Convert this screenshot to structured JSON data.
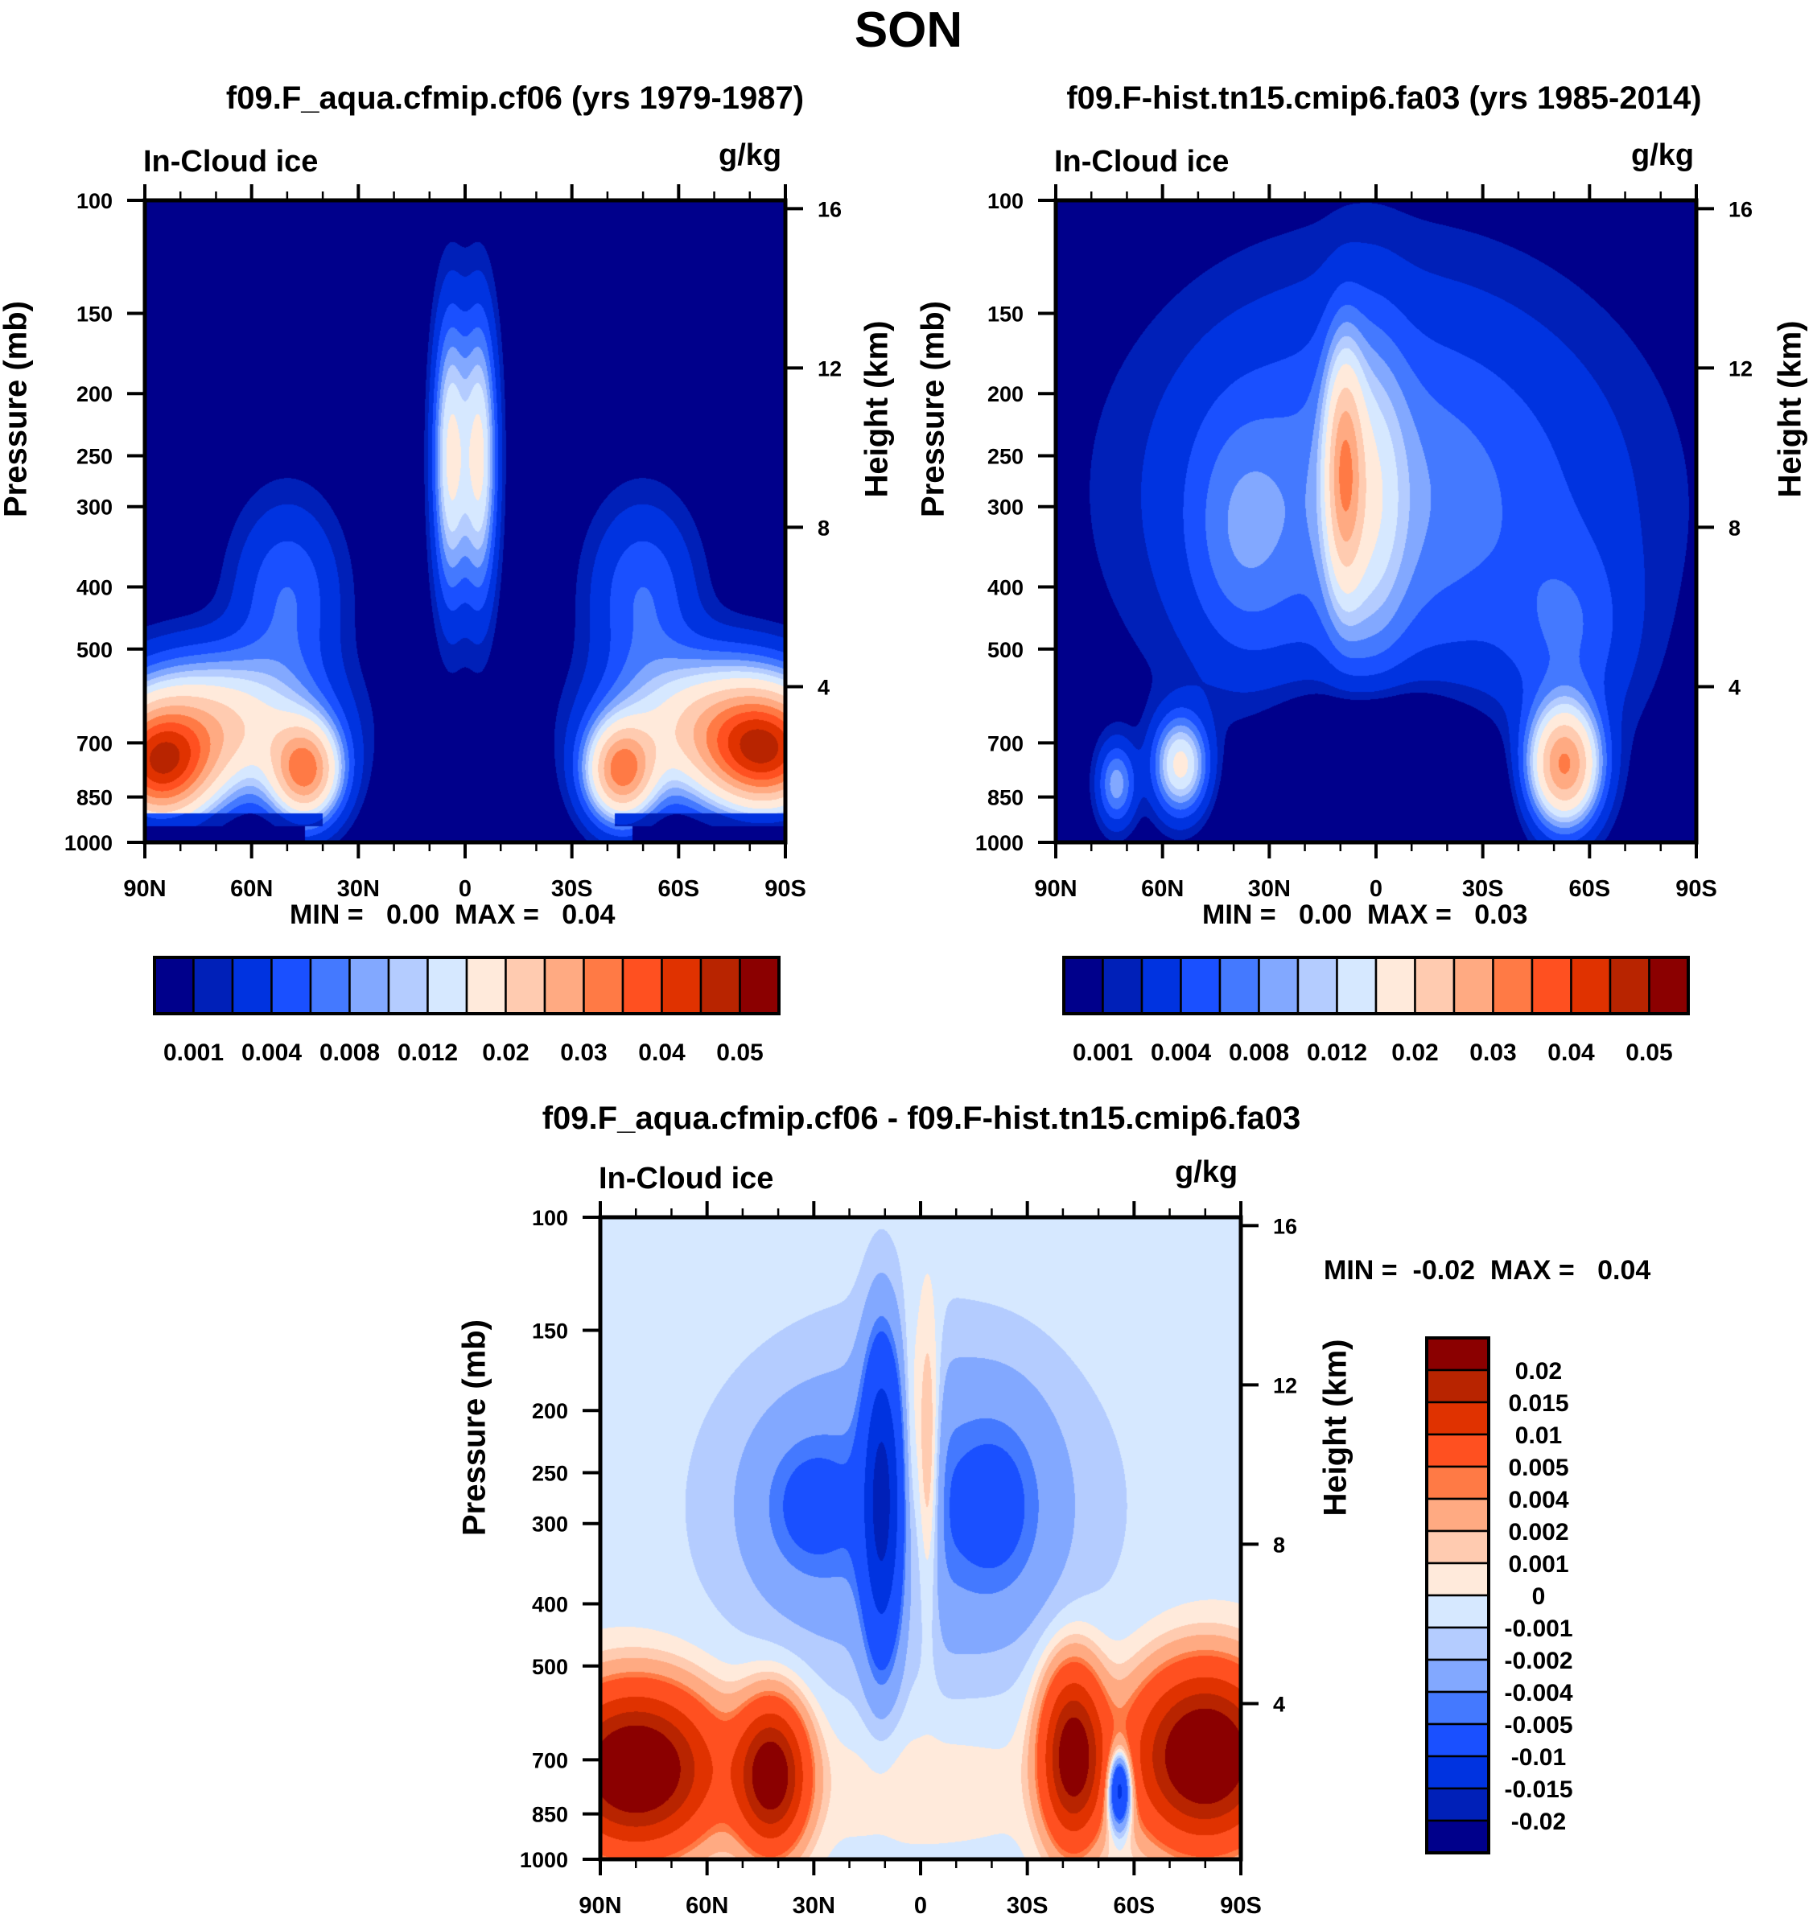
{
  "figure_title": "SON",
  "chart_data": [
    {
      "type": "heatmap",
      "panel": "top-left",
      "title": "f09.F_aqua.cfmip.cf06 (yrs 1979-1987)",
      "left_string": "In-Cloud ice",
      "right_string": "g/kg",
      "xlabel": "",
      "ylabel": "Pressure (mb)",
      "y2label": "Height (km)",
      "x_ticks": [
        "90N",
        "60N",
        "30N",
        "0",
        "30S",
        "60S",
        "90S"
      ],
      "x_range": [
        90,
        -90
      ],
      "y_ticks": [
        100,
        150,
        200,
        250,
        300,
        400,
        500,
        700,
        850,
        1000
      ],
      "y_range": [
        1000,
        100
      ],
      "y2_ticks": [
        4,
        8,
        12,
        16
      ],
      "stats": "MIN =   0.00  MAX =   0.04",
      "min": 0.0,
      "max": 0.04,
      "field": "Bands of ice near 850-700 mb at 90N-40N and 40S-90S peaking ~0.03-0.04; narrow equatorial column 150-600 mb peaking ~0.012-0.02 near 300 mb",
      "colorbar": {
        "orientation": "horizontal",
        "levels": [
          0.001,
          0.002,
          0.004,
          0.006,
          0.008,
          0.01,
          0.012,
          0.015,
          0.02,
          0.025,
          0.03,
          0.035,
          0.04,
          0.045,
          0.05
        ],
        "labels": [
          "0.001",
          "0.004",
          "0.008",
          "0.012",
          "0.02",
          "0.03",
          "0.04",
          "0.05"
        ],
        "colors": [
          "#00008b",
          "#0020b8",
          "#0033e0",
          "#1a50ff",
          "#4479ff",
          "#82a8ff",
          "#b4ccff",
          "#d6e8ff",
          "#ffeadb",
          "#ffcbb0",
          "#ffaa82",
          "#ff7a45",
          "#ff5020",
          "#e03200",
          "#b82400",
          "#8b0000"
        ]
      }
    },
    {
      "type": "heatmap",
      "panel": "top-right",
      "title": "f09.F-hist.tn15.cmip6.fa03 (yrs 1985-2014)",
      "left_string": "In-Cloud ice",
      "right_string": "g/kg",
      "ylabel": "Pressure (mb)",
      "y2label": "Height (km)",
      "x_ticks": [
        "90N",
        "60N",
        "30N",
        "0",
        "30S",
        "60S",
        "90S"
      ],
      "x_range": [
        90,
        -90
      ],
      "y_ticks": [
        100,
        150,
        200,
        250,
        300,
        400,
        500,
        700,
        850,
        1000
      ],
      "y_range": [
        1000,
        100
      ],
      "y2_ticks": [
        4,
        8,
        12,
        16
      ],
      "stats": "MIN =   0.00  MAX =   0.03",
      "min": 0.0,
      "max": 0.03,
      "field": "Broad arch of ice 130-700 mb spanning 90N-70S, tropical column near 10N peaking ~0.02 at 300 mb; low-level maxima near 75N, 55N (~0.012-0.02) and 55S (~0.03) around 850 mb",
      "colorbar": {
        "orientation": "horizontal",
        "levels": [
          0.001,
          0.002,
          0.004,
          0.006,
          0.008,
          0.01,
          0.012,
          0.015,
          0.02,
          0.025,
          0.03,
          0.035,
          0.04,
          0.045,
          0.05
        ],
        "labels": [
          "0.001",
          "0.004",
          "0.008",
          "0.012",
          "0.02",
          "0.03",
          "0.04",
          "0.05"
        ],
        "colors": [
          "#00008b",
          "#0020b8",
          "#0033e0",
          "#1a50ff",
          "#4479ff",
          "#82a8ff",
          "#b4ccff",
          "#d6e8ff",
          "#ffeadb",
          "#ffcbb0",
          "#ffaa82",
          "#ff7a45",
          "#ff5020",
          "#e03200",
          "#b82400",
          "#8b0000"
        ]
      }
    },
    {
      "type": "heatmap",
      "panel": "bottom",
      "title": "f09.F_aqua.cfmip.cf06 - f09.F-hist.tn15.cmip6.fa03",
      "left_string": "In-Cloud ice",
      "right_string": "g/kg",
      "ylabel": "Pressure (mb)",
      "y2label": "Height (km)",
      "x_ticks": [
        "90N",
        "60N",
        "30N",
        "0",
        "30S",
        "60S",
        "90S"
      ],
      "x_range": [
        90,
        -90
      ],
      "y_ticks": [
        100,
        150,
        200,
        250,
        300,
        400,
        500,
        700,
        850,
        1000
      ],
      "y_range": [
        1000,
        100
      ],
      "y2_ticks": [
        4,
        8,
        12,
        16
      ],
      "stats": "MIN =  -0.02  MAX =   0.04",
      "min": -0.02,
      "max": 0.04,
      "field": "Positive differences (>0.02) at 850-600 mb poleward of 40N and 40S; negative differences (-0.002 to -0.015) in a tropical arch 150-550 mb, strongest near 10N; small positive column at equator ~300 mb; negative core ~-0.015 near 55S at 850 mb",
      "colorbar": {
        "orientation": "vertical",
        "levels": [
          -0.02,
          -0.015,
          -0.01,
          -0.005,
          -0.004,
          -0.002,
          -0.001,
          0,
          0.001,
          0.002,
          0.004,
          0.005,
          0.01,
          0.015,
          0.02
        ],
        "labels": [
          "0.02",
          "0.015",
          "0.01",
          "0.005",
          "0.004",
          "0.002",
          "0.001",
          "0",
          "-0.001",
          "-0.002",
          "-0.004",
          "-0.005",
          "-0.01",
          "-0.015",
          "-0.02"
        ],
        "colors": [
          "#00008b",
          "#0020b8",
          "#0033e0",
          "#1a50ff",
          "#4479ff",
          "#82a8ff",
          "#b4ccff",
          "#d6e8ff",
          "#ffeadb",
          "#ffcbb0",
          "#ffaa82",
          "#ff7a45",
          "#ff5020",
          "#e03200",
          "#b82400",
          "#8b0000"
        ]
      }
    }
  ]
}
